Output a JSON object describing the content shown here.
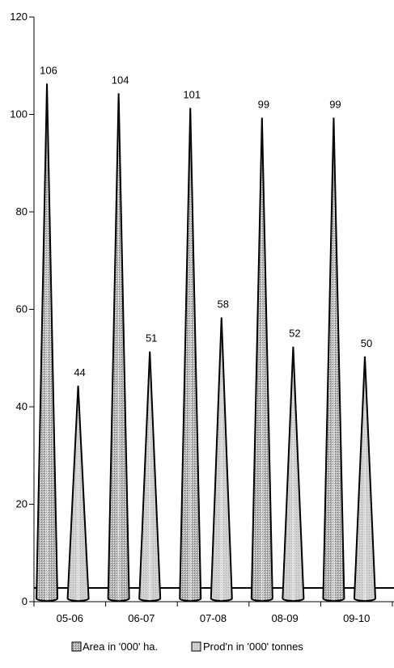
{
  "chart_data": {
    "type": "bar",
    "shape": "cone",
    "categories": [
      "05-06",
      "06-07",
      "07-08",
      "08-09",
      "09-10"
    ],
    "series": [
      {
        "name": "Area in '000' ha.",
        "values": [
          106,
          104,
          101,
          99,
          99
        ],
        "labels": [
          "106",
          "104",
          "101",
          "99",
          "99"
        ]
      },
      {
        "name": "Prod'n in '000' tonnes",
        "values": [
          44,
          51,
          58,
          52,
          50
        ],
        "labels": [
          "44",
          "51",
          "58",
          "52",
          "50"
        ]
      }
    ],
    "ylim": [
      0,
      120
    ],
    "yticks": [
      "0",
      "20",
      "40",
      "60",
      "80",
      "100",
      "120"
    ],
    "title": "",
    "xlabel": "",
    "ylabel": "",
    "grid": false,
    "legend_position": "bottom"
  },
  "colors": {
    "area": "#9a9a9a",
    "prod": "#c8c8c8",
    "axis": "#000000"
  }
}
